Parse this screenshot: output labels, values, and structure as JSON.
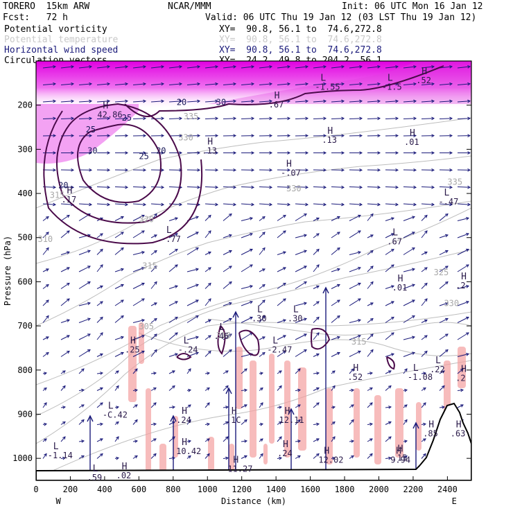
{
  "header": {
    "model": "TORERO  15km ARW",
    "center": "NCAR/MMM",
    "init": "Init: 06 UTC Mon 16 Jan 12",
    "fcst": "Fcst:   72 h",
    "valid": "Valid: 06 UTC Thu 19 Jan 12 (03 LST Thu 19 Jan 12)"
  },
  "legend": [
    {
      "name": "Potential vorticity",
      "xy": "XY=  90.8, 56.1 to  74.6,272.8",
      "color": "#000000"
    },
    {
      "name": "Potential temperature",
      "xy": "XY=  90.8, 56.1 to  74.6,272.8",
      "color": "#c8c8c8"
    },
    {
      "name": "Horizontal wind speed",
      "xy": "XY=  90.8, 56.1 to  74.6,272.8",
      "color": "#1a1a7a"
    },
    {
      "name": "Circulation vectors",
      "xy": "XY=  24.2, 49.8 to 204.2, 56.1",
      "color": "#000000"
    }
  ],
  "chart_data": {
    "type": "cross-section",
    "xlabel": "Distance (km)",
    "ylabel": "Pressure (hPa)",
    "xlim": [
      0,
      2540
    ],
    "ylim": [
      1050,
      100
    ],
    "x_ticks": [
      "0",
      "200",
      "400",
      "600",
      "800",
      "1000",
      "1200",
      "1400",
      "1600",
      "1800",
      "2000",
      "2200",
      "2400"
    ],
    "y_ticks": [
      "200",
      "300",
      "400",
      "500",
      "600",
      "700",
      "800",
      "900",
      "1000"
    ],
    "x_end_labels": {
      "left": "W",
      "right": "E"
    },
    "theta_labels": [
      {
        "x": 80,
        "p": 410,
        "t": "315"
      },
      {
        "x": 10,
        "p": 510,
        "t": "310"
      },
      {
        "x": 600,
        "p": 465,
        "t": "320"
      },
      {
        "x": 620,
        "p": 570,
        "t": "315"
      },
      {
        "x": 600,
        "p": 708,
        "t": "305"
      },
      {
        "x": 1050,
        "p": 728,
        "t": "310"
      },
      {
        "x": 1840,
        "p": 742,
        "t": "315"
      },
      {
        "x": 830,
        "p": 280,
        "t": "330"
      },
      {
        "x": 1460,
        "p": 395,
        "t": "330"
      },
      {
        "x": 860,
        "p": 232,
        "t": "335"
      },
      {
        "x": 2400,
        "p": 380,
        "t": "335"
      },
      {
        "x": 2320,
        "p": 585,
        "t": "325"
      },
      {
        "x": 2380,
        "p": 655,
        "t": "330"
      }
    ],
    "speed_labels": [
      {
        "x": 820,
        "p": 200,
        "t": "20"
      },
      {
        "x": 500,
        "p": 235,
        "t": "25"
      },
      {
        "x": 600,
        "p": 322,
        "t": "25"
      },
      {
        "x": 700,
        "p": 310,
        "t": "20"
      },
      {
        "x": 130,
        "p": 388,
        "t": "20"
      },
      {
        "x": 300,
        "p": 310,
        "t": "30"
      },
      {
        "x": 290,
        "p": 262,
        "t": "25"
      },
      {
        "x": 1050,
        "p": 200,
        "t": "30"
      }
    ],
    "extrema": [
      {
        "kind": "H",
        "value": "42.86",
        "x": 390,
        "p": 228
      },
      {
        "kind": "H",
        "value": ".13",
        "x": 1000,
        "p": 310
      },
      {
        "kind": "H",
        "value": "-.07",
        "x": 1460,
        "p": 360
      },
      {
        "kind": "H",
        "value": ".67",
        "x": 1390,
        "p": 205
      },
      {
        "kind": "L",
        "value": "-1.55",
        "x": 1660,
        "p": 165
      },
      {
        "kind": "L",
        "value": "-1.5",
        "x": 2050,
        "p": 165
      },
      {
        "kind": "H",
        "value": ".52",
        "x": 2250,
        "p": 150
      },
      {
        "kind": "H",
        "value": ".13",
        "x": 1700,
        "p": 285
      },
      {
        "kind": "H",
        "value": ".01",
        "x": 2180,
        "p": 290
      },
      {
        "kind": "H",
        "value": ".17",
        "x": 180,
        "p": 420
      },
      {
        "kind": "L",
        "value": "-.47",
        "x": 2380,
        "p": 425
      },
      {
        "kind": "L",
        "value": "-.77",
        "x": 760,
        "p": 510
      },
      {
        "kind": "L",
        "value": ".67",
        "x": 2080,
        "p": 515
      },
      {
        "kind": "H",
        "value": ".01",
        "x": 2110,
        "p": 620
      },
      {
        "kind": "H",
        "value": ".2",
        "x": 2480,
        "p": 615
      },
      {
        "kind": "L",
        "value": ".30",
        "x": 1290,
        "p": 690
      },
      {
        "kind": "L",
        "value": ".30",
        "x": 1500,
        "p": 690
      },
      {
        "kind": "L",
        "value": ".46",
        "x": 1070,
        "p": 730
      },
      {
        "kind": "L",
        "value": "-.24",
        "x": 860,
        "p": 760
      },
      {
        "kind": "L",
        "value": "-2.47",
        "x": 1380,
        "p": 760
      },
      {
        "kind": "H",
        "value": ".25",
        "x": 550,
        "p": 760
      },
      {
        "kind": "H",
        "value": ".52",
        "x": 1850,
        "p": 822
      },
      {
        "kind": "L",
        "value": "-1.08",
        "x": 2200,
        "p": 822
      },
      {
        "kind": "L",
        "value": ".22",
        "x": 2330,
        "p": 805
      },
      {
        "kind": "H",
        "value": ".2",
        "x": 2480,
        "p": 825
      },
      {
        "kind": "L",
        "value": "-C.42",
        "x": 420,
        "p": 908
      },
      {
        "kind": "H",
        "value": ".24",
        "x": 850,
        "p": 920
      },
      {
        "kind": "H",
        "value": ".1C",
        "x": 1140,
        "p": 920
      },
      {
        "kind": "H",
        "value": "12.11",
        "x": 1450,
        "p": 920
      },
      {
        "kind": "H",
        "value": ".85",
        "x": 2290,
        "p": 950
      },
      {
        "kind": "H",
        "value": ".63",
        "x": 2450,
        "p": 950
      },
      {
        "kind": "L",
        "value": "-1.14",
        "x": 100,
        "p": 1000
      },
      {
        "kind": "H",
        "value": "10.42",
        "x": 850,
        "p": 990
      },
      {
        "kind": "H",
        "value": ".24",
        "x": 1440,
        "p": 995
      },
      {
        "kind": "H",
        "value": "12.02",
        "x": 1680,
        "p": 1010
      },
      {
        "kind": "H",
        "value": "9.94",
        "x": 2100,
        "p": 1010
      },
      {
        "kind": "H",
        "value": ".15",
        "x": 2110,
        "p": 1005
      },
      {
        "kind": "H",
        "value": "11.27",
        "x": 1150,
        "p": 1030
      },
      {
        "kind": "H",
        "value": ".02",
        "x": 500,
        "p": 1045
      },
      {
        "kind": "L",
        "value": ".59",
        "x": 330,
        "p": 1050
      }
    ]
  }
}
